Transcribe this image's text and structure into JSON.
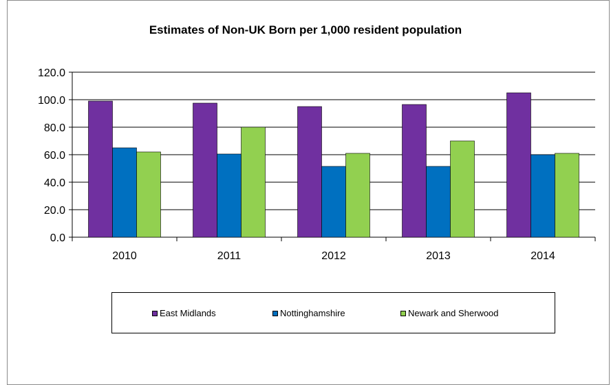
{
  "chart_data": {
    "type": "bar",
    "title": "Estimates of Non-UK Born per 1,000 resident population",
    "categories": [
      "2010",
      "2011",
      "2012",
      "2013",
      "2014"
    ],
    "series": [
      {
        "name": "East Midlands",
        "values": [
          99.0,
          97.5,
          95.0,
          96.5,
          105.0
        ],
        "color": "#7030a0"
      },
      {
        "name": "Nottinghamshire",
        "values": [
          65.0,
          60.5,
          51.5,
          51.5,
          60.0
        ],
        "color": "#0070c0"
      },
      {
        "name": "Newark and Sherwood",
        "values": [
          62.0,
          80.0,
          61.0,
          70.0,
          61.0
        ],
        "color": "#92d050"
      }
    ],
    "ylim": [
      0,
      120
    ],
    "yticks": [
      "0.0",
      "20.0",
      "40.0",
      "60.0",
      "80.0",
      "100.0",
      "120.0"
    ],
    "grid": true,
    "legend_position": "bottom"
  }
}
